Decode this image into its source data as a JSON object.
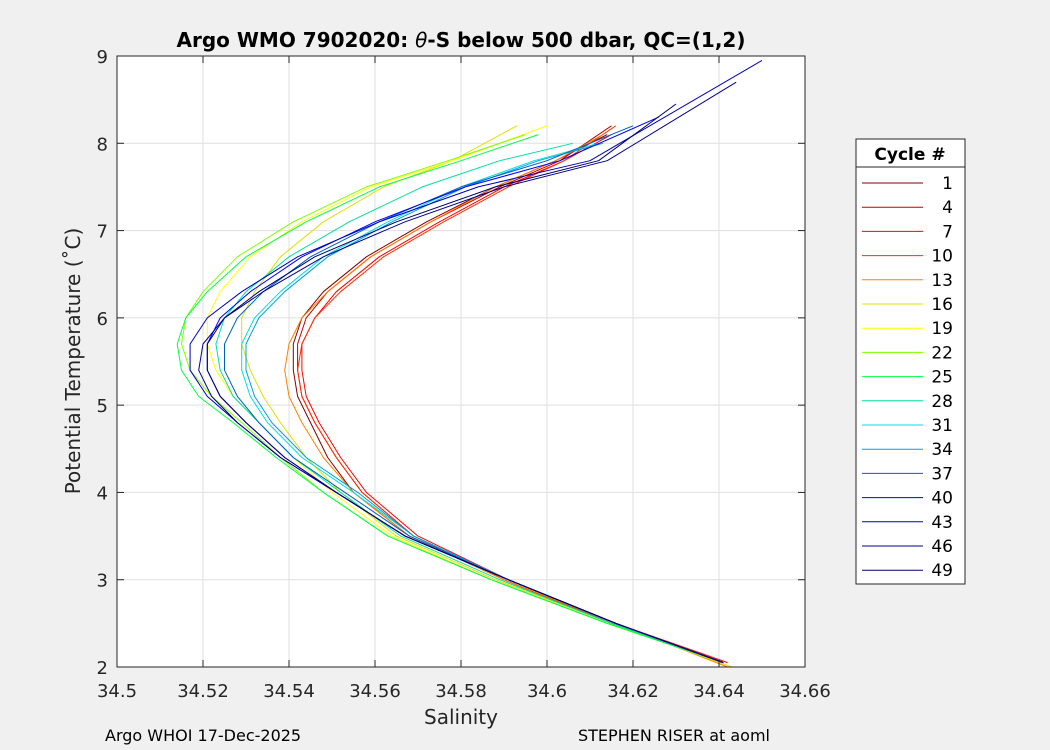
{
  "chart_data": {
    "type": "line",
    "title": "Argo WMO 7902020: θ-S below 500 dbar,  QC=(1,2)",
    "title_parts": {
      "pre": "Argo WMO 7902020: ",
      "theta": "θ",
      "post": "-S below 500 dbar,  QC=(1,2)"
    },
    "xlabel": "Salinity",
    "ylabel": "Potential Temperature (˚C)",
    "xlim": [
      34.5,
      34.66
    ],
    "ylim": [
      2,
      9
    ],
    "xticks": [
      "34.5",
      "34.52",
      "34.54",
      "34.56",
      "34.58",
      "34.6",
      "34.62",
      "34.64",
      "34.66"
    ],
    "yticks": [
      "2",
      "3",
      "4",
      "5",
      "6",
      "7",
      "8",
      "9"
    ],
    "grid": true,
    "legend_title": "Cycle #",
    "legend_position": "right",
    "series": [
      {
        "name": "1",
        "color": "#800000",
        "x": [
          34.641,
          34.615,
          34.59,
          34.568,
          34.555,
          34.549,
          34.545,
          34.542,
          34.541,
          34.541,
          34.543,
          34.548,
          34.558,
          34.572,
          34.588,
          34.602,
          34.614
        ],
        "y": [
          2.05,
          2.5,
          3.0,
          3.5,
          4.0,
          4.4,
          4.8,
          5.1,
          5.4,
          5.7,
          6.0,
          6.3,
          6.7,
          7.1,
          7.5,
          7.8,
          8.1
        ]
      },
      {
        "name": "4",
        "color": "#c00000",
        "x": [
          34.641,
          34.615,
          34.59,
          34.569,
          34.557,
          34.551,
          34.546,
          34.543,
          34.542,
          34.542,
          34.544,
          34.549,
          34.559,
          34.573,
          34.589,
          34.603,
          34.615
        ],
        "y": [
          2.05,
          2.5,
          3.0,
          3.5,
          4.0,
          4.4,
          4.8,
          5.1,
          5.4,
          5.7,
          6.0,
          6.3,
          6.7,
          7.1,
          7.5,
          7.8,
          8.2
        ]
      },
      {
        "name": "7",
        "color": "#ff0000",
        "x": [
          34.642,
          34.616,
          34.591,
          34.57,
          34.558,
          34.552,
          34.547,
          34.544,
          34.543,
          34.543,
          34.546,
          34.551,
          34.561,
          34.575,
          34.59,
          34.604,
          34.615
        ],
        "y": [
          2.05,
          2.5,
          3.0,
          3.5,
          4.0,
          4.4,
          4.8,
          5.1,
          5.4,
          5.7,
          6.0,
          6.3,
          6.7,
          7.1,
          7.5,
          7.8,
          8.1
        ]
      },
      {
        "name": "10",
        "color": "#ff3000",
        "x": [
          34.641,
          34.615,
          34.59,
          34.569,
          34.557,
          34.551,
          34.546,
          34.543,
          34.542,
          34.543,
          34.546,
          34.552,
          34.562,
          34.576,
          34.591,
          34.604,
          34.616
        ],
        "y": [
          2.05,
          2.5,
          3.0,
          3.5,
          4.0,
          4.4,
          4.8,
          5.1,
          5.4,
          5.7,
          6.0,
          6.3,
          6.7,
          7.1,
          7.5,
          7.8,
          8.2
        ]
      },
      {
        "name": "13",
        "color": "#ff8000",
        "x": [
          34.642,
          34.616,
          34.59,
          34.568,
          34.555,
          34.548,
          34.543,
          34.54,
          34.539,
          34.54,
          34.543,
          34.549,
          34.559,
          34.573,
          34.588,
          34.602,
          34.613
        ],
        "y": [
          2.0,
          2.5,
          3.0,
          3.5,
          4.0,
          4.4,
          4.8,
          5.1,
          5.4,
          5.7,
          6.0,
          6.3,
          6.7,
          7.1,
          7.5,
          7.8,
          8.1
        ]
      },
      {
        "name": "16",
        "color": "#e0e000",
        "x": [
          34.643,
          34.615,
          34.588,
          34.565,
          34.552,
          34.544,
          34.538,
          34.534,
          34.531,
          34.529,
          34.529,
          34.532,
          34.538,
          34.548,
          34.562,
          34.578,
          34.593
        ],
        "y": [
          2.0,
          2.5,
          3.0,
          3.5,
          4.0,
          4.4,
          4.8,
          5.1,
          5.4,
          5.7,
          6.0,
          6.3,
          6.7,
          7.1,
          7.5,
          7.8,
          8.2
        ]
      },
      {
        "name": "19",
        "color": "#ffff00",
        "x": [
          34.641,
          34.614,
          34.587,
          34.564,
          34.55,
          34.541,
          34.533,
          34.527,
          34.523,
          34.521,
          34.521,
          34.524,
          34.531,
          34.543,
          34.559,
          34.578,
          34.6
        ],
        "y": [
          2.05,
          2.5,
          3.0,
          3.5,
          4.0,
          4.4,
          4.8,
          5.1,
          5.4,
          5.7,
          6.0,
          6.3,
          6.7,
          7.1,
          7.5,
          7.8,
          8.2
        ]
      },
      {
        "name": "22",
        "color": "#80ff00",
        "x": [
          34.641,
          34.614,
          34.587,
          34.563,
          34.548,
          34.538,
          34.529,
          34.522,
          34.517,
          34.515,
          34.516,
          34.52,
          34.528,
          34.541,
          34.558,
          34.577,
          34.595
        ],
        "y": [
          2.05,
          2.5,
          3.0,
          3.5,
          4.0,
          4.4,
          4.8,
          5.1,
          5.4,
          5.7,
          6.0,
          6.3,
          6.7,
          7.1,
          7.5,
          7.8,
          8.1
        ]
      },
      {
        "name": "25",
        "color": "#00ff40",
        "x": [
          34.641,
          34.614,
          34.587,
          34.563,
          34.548,
          34.537,
          34.527,
          34.519,
          34.515,
          34.514,
          34.516,
          34.521,
          34.53,
          34.544,
          34.561,
          34.58,
          34.598
        ],
        "y": [
          2.05,
          2.5,
          3.0,
          3.5,
          4.0,
          4.4,
          4.8,
          5.1,
          5.4,
          5.7,
          6.0,
          6.3,
          6.7,
          7.1,
          7.5,
          7.8,
          8.1
        ]
      },
      {
        "name": "28",
        "color": "#00e0a0",
        "x": [
          34.641,
          34.615,
          34.589,
          34.566,
          34.552,
          34.541,
          34.533,
          34.527,
          34.524,
          34.523,
          34.525,
          34.53,
          34.54,
          34.554,
          34.571,
          34.589,
          34.606
        ],
        "y": [
          2.05,
          2.5,
          3.0,
          3.5,
          4.0,
          4.4,
          4.8,
          5.1,
          5.4,
          5.7,
          6.0,
          6.3,
          6.7,
          7.1,
          7.5,
          7.8,
          8.0
        ]
      },
      {
        "name": "31",
        "color": "#00e0e0",
        "x": [
          34.641,
          34.616,
          34.591,
          34.569,
          34.555,
          34.543,
          34.535,
          34.531,
          34.529,
          34.529,
          34.532,
          34.538,
          34.548,
          34.563,
          34.58,
          34.597,
          34.612
        ],
        "y": [
          2.05,
          2.5,
          3.0,
          3.5,
          4.0,
          4.4,
          4.8,
          5.1,
          5.4,
          5.7,
          6.0,
          6.3,
          6.7,
          7.1,
          7.5,
          7.8,
          8.0
        ]
      },
      {
        "name": "34",
        "color": "#00a0e0",
        "x": [
          34.641,
          34.616,
          34.591,
          34.569,
          34.556,
          34.544,
          34.536,
          34.532,
          34.53,
          34.53,
          34.533,
          34.539,
          34.549,
          34.564,
          34.581,
          34.598,
          34.613
        ],
        "y": [
          2.05,
          2.5,
          3.0,
          3.5,
          4.0,
          4.4,
          4.8,
          5.1,
          5.4,
          5.7,
          6.0,
          6.3,
          6.7,
          7.1,
          7.5,
          7.8,
          8.0
        ]
      },
      {
        "name": "37",
        "color": "#0060c0",
        "x": [
          34.641,
          34.616,
          34.591,
          34.568,
          34.553,
          34.541,
          34.533,
          34.528,
          34.525,
          34.525,
          34.528,
          34.534,
          34.545,
          34.561,
          34.58,
          34.6,
          34.62
        ],
        "y": [
          2.05,
          2.5,
          3.0,
          3.5,
          4.0,
          4.4,
          4.8,
          5.1,
          5.4,
          5.7,
          6.0,
          6.3,
          6.7,
          7.1,
          7.5,
          7.8,
          8.2
        ]
      },
      {
        "name": "40",
        "color": "#0000ff",
        "x": [
          34.641,
          34.616,
          34.591,
          34.567,
          34.551,
          34.539,
          34.53,
          34.524,
          34.521,
          34.521,
          34.524,
          34.531,
          34.543,
          34.56,
          34.581,
          34.603,
          34.626
        ],
        "y": [
          2.05,
          2.5,
          3.0,
          3.5,
          4.0,
          4.4,
          4.8,
          5.1,
          5.4,
          5.7,
          6.0,
          6.3,
          6.7,
          7.1,
          7.5,
          7.8,
          8.3
        ]
      },
      {
        "name": "43",
        "color": "#0000c0",
        "x": [
          34.641,
          34.616,
          34.591,
          34.567,
          34.551,
          34.538,
          34.528,
          34.521,
          34.517,
          34.517,
          34.521,
          34.529,
          34.542,
          34.561,
          34.584,
          34.61,
          34.65
        ],
        "y": [
          2.05,
          2.5,
          3.0,
          3.5,
          4.0,
          4.4,
          4.8,
          5.1,
          5.4,
          5.7,
          6.0,
          6.3,
          6.7,
          7.1,
          7.5,
          7.8,
          8.95
        ]
      },
      {
        "name": "46",
        "color": "#000090",
        "x": [
          34.641,
          34.616,
          34.591,
          34.567,
          34.551,
          34.538,
          34.528,
          34.522,
          34.519,
          34.52,
          34.525,
          34.534,
          34.548,
          34.567,
          34.59,
          34.614,
          34.644
        ],
        "y": [
          2.05,
          2.5,
          3.0,
          3.5,
          4.0,
          4.4,
          4.8,
          5.1,
          5.4,
          5.7,
          6.0,
          6.3,
          6.7,
          7.1,
          7.5,
          7.8,
          8.7
        ]
      },
      {
        "name": "49",
        "color": "#000070",
        "x": [
          34.641,
          34.616,
          34.591,
          34.567,
          34.551,
          34.539,
          34.53,
          34.524,
          34.521,
          34.521,
          34.525,
          34.533,
          34.546,
          34.565,
          34.588,
          34.612,
          34.63
        ],
        "y": [
          2.05,
          2.5,
          3.0,
          3.5,
          4.0,
          4.4,
          4.8,
          5.1,
          5.4,
          5.7,
          6.0,
          6.3,
          6.7,
          7.1,
          7.5,
          7.8,
          8.45
        ]
      }
    ]
  },
  "footer": {
    "left": "Argo WHOI 17-Dec-2025",
    "right": "STEPHEN RISER at aoml"
  }
}
